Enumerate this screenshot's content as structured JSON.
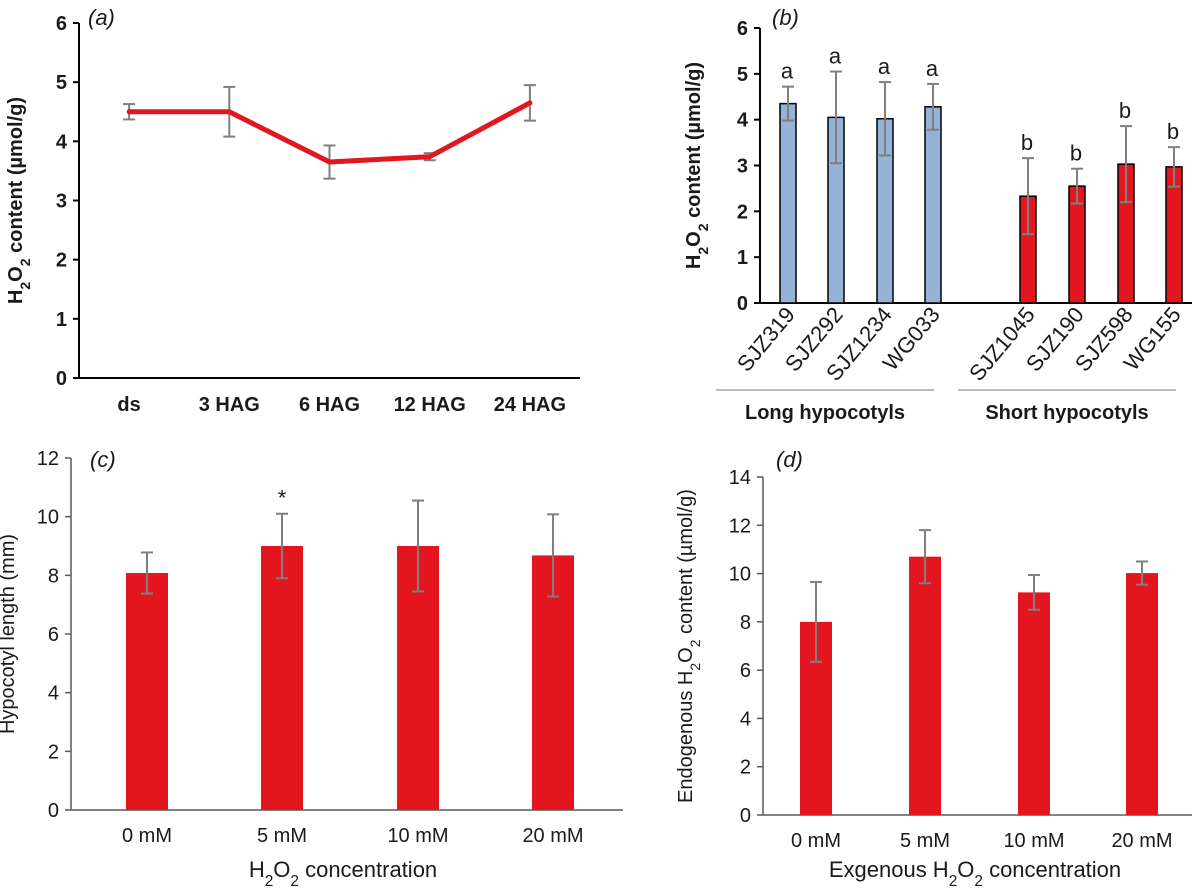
{
  "chart_data": [
    {
      "id": "a",
      "panel_label": "a",
      "type": "line",
      "title": "",
      "xlabel": "",
      "ylabel": {
        "pre": "H",
        "sub1": "2",
        "mid": "O",
        "sub2": "2",
        "post": " content (µmol/g)"
      },
      "ylim": [
        0,
        6
      ],
      "yticks": [
        "0",
        "1",
        "2",
        "3",
        "4",
        "5",
        "6"
      ],
      "categories": [
        "ds",
        "3 HAG",
        "6 HAG",
        "12 HAG",
        "24 HAG"
      ],
      "series": [
        {
          "name": "H2O2 content",
          "color": "#e3151f",
          "values": [
            4.5,
            4.5,
            3.65,
            3.74,
            4.65
          ],
          "errors": [
            0.13,
            0.42,
            0.28,
            0.06,
            0.3
          ]
        }
      ]
    },
    {
      "id": "b",
      "panel_label": "b",
      "type": "bar",
      "title": "",
      "ylabel": {
        "pre": "H",
        "sub1": "2",
        "mid": "O",
        "sub2": "2",
        "post": " content (µmol/g)"
      },
      "ylim": [
        0,
        6
      ],
      "yticks": [
        "0",
        "1",
        "2",
        "3",
        "4",
        "5",
        "6"
      ],
      "categories": [
        "SJZ319",
        "SJZ292",
        "SJZ1234",
        "WG033",
        "SJZ1045",
        "SJZ190",
        "SJZ598",
        "WG155"
      ],
      "values": [
        4.35,
        4.05,
        4.02,
        4.28,
        2.33,
        2.55,
        3.03,
        2.97
      ],
      "errors": [
        0.37,
        1.0,
        0.8,
        0.5,
        0.83,
        0.38,
        0.83,
        0.43
      ],
      "letters": [
        "a",
        "a",
        "a",
        "a",
        "b",
        "b",
        "b",
        "b"
      ],
      "colors": [
        "#95b3d7",
        "#95b3d7",
        "#95b3d7",
        "#95b3d7",
        "#e3151f",
        "#e3151f",
        "#e3151f",
        "#e3151f"
      ],
      "groups": [
        {
          "label": "Long hypocotyls",
          "members": [
            0,
            1,
            2,
            3
          ]
        },
        {
          "label": "Short hypocotyls",
          "members": [
            4,
            5,
            6,
            7
          ]
        }
      ]
    },
    {
      "id": "c",
      "panel_label": "c",
      "type": "bar",
      "title": "",
      "ylabel": {
        "text": "Hypocotyl length (mm)"
      },
      "xlabel": {
        "pre": "H",
        "sub1": "2",
        "mid": "O",
        "sub2": "2",
        "post": " concentration"
      },
      "ylim": [
        0,
        12
      ],
      "yticks": [
        "0",
        "2",
        "4",
        "6",
        "8",
        "10",
        "12"
      ],
      "categories": [
        "0 mM",
        "5 mM",
        "10 mM",
        "20 mM"
      ],
      "values": [
        8.08,
        9.0,
        9.0,
        8.68
      ],
      "errors": [
        0.7,
        1.1,
        1.55,
        1.4
      ],
      "annotations": [
        "",
        "*",
        "",
        ""
      ],
      "color": "#e3151f"
    },
    {
      "id": "d",
      "panel_label": "d",
      "type": "bar",
      "title": "",
      "ylabel": {
        "pre": "Endogenous H",
        "sub1": "2",
        "mid": "O",
        "sub2": "2",
        "post": " content (µmol/g)"
      },
      "xlabel": {
        "pre": "Exgenous H",
        "sub1": "2",
        "mid": "O",
        "sub2": "2",
        "post": " concentration"
      },
      "ylim": [
        0,
        14
      ],
      "yticks": [
        "0",
        "2",
        "4",
        "6",
        "8",
        "10",
        "12",
        "14"
      ],
      "categories": [
        "0 mM",
        "5 mM",
        "10 mM",
        "20 mM"
      ],
      "values": [
        8.0,
        10.7,
        9.22,
        10.02
      ],
      "errors": [
        1.65,
        1.1,
        0.72,
        0.48
      ],
      "color": "#e3151f"
    }
  ]
}
